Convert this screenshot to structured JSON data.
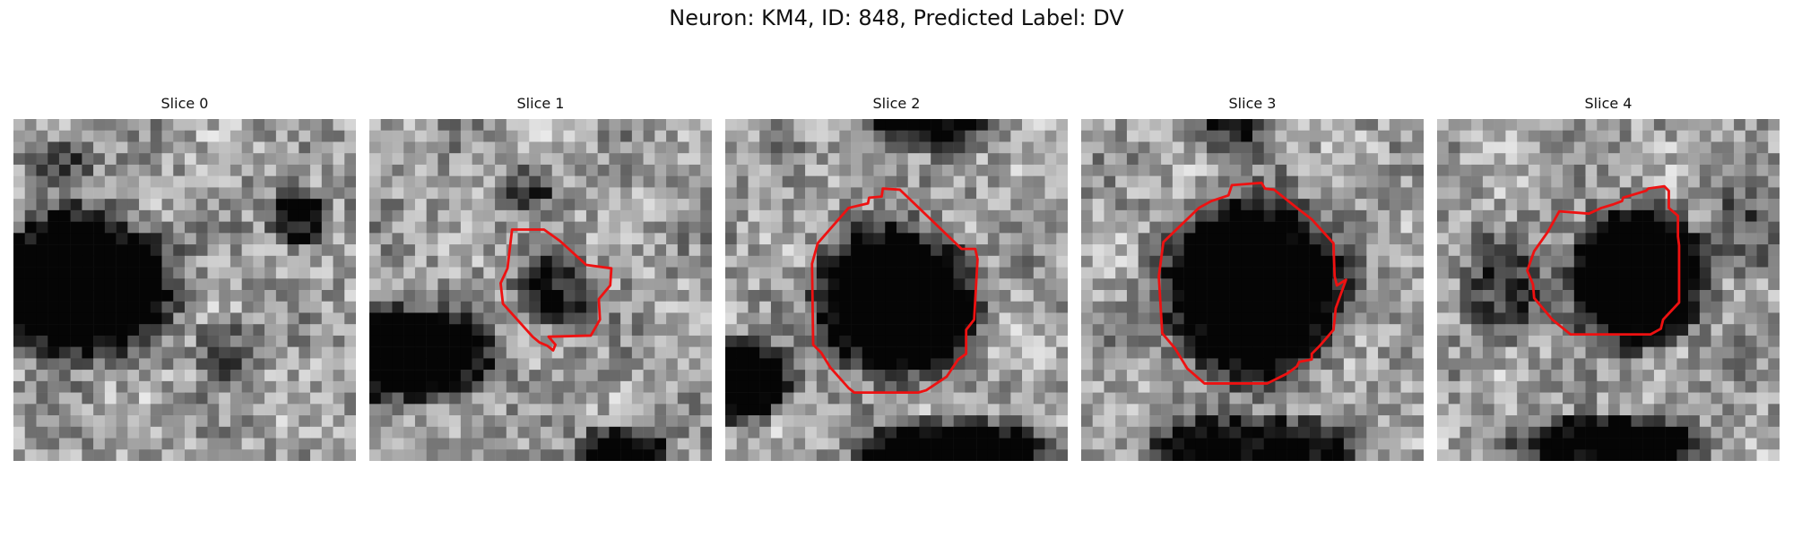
{
  "figure": {
    "title": "Neuron: KM4, ID: 848, Predicted Label: DV"
  },
  "contour_color": "#ee1111",
  "panels": [
    {
      "title": "Slice 0"
    },
    {
      "title": "Slice 1"
    },
    {
      "title": "Slice 2"
    },
    {
      "title": "Slice 3"
    },
    {
      "title": "Slice 4"
    }
  ]
}
